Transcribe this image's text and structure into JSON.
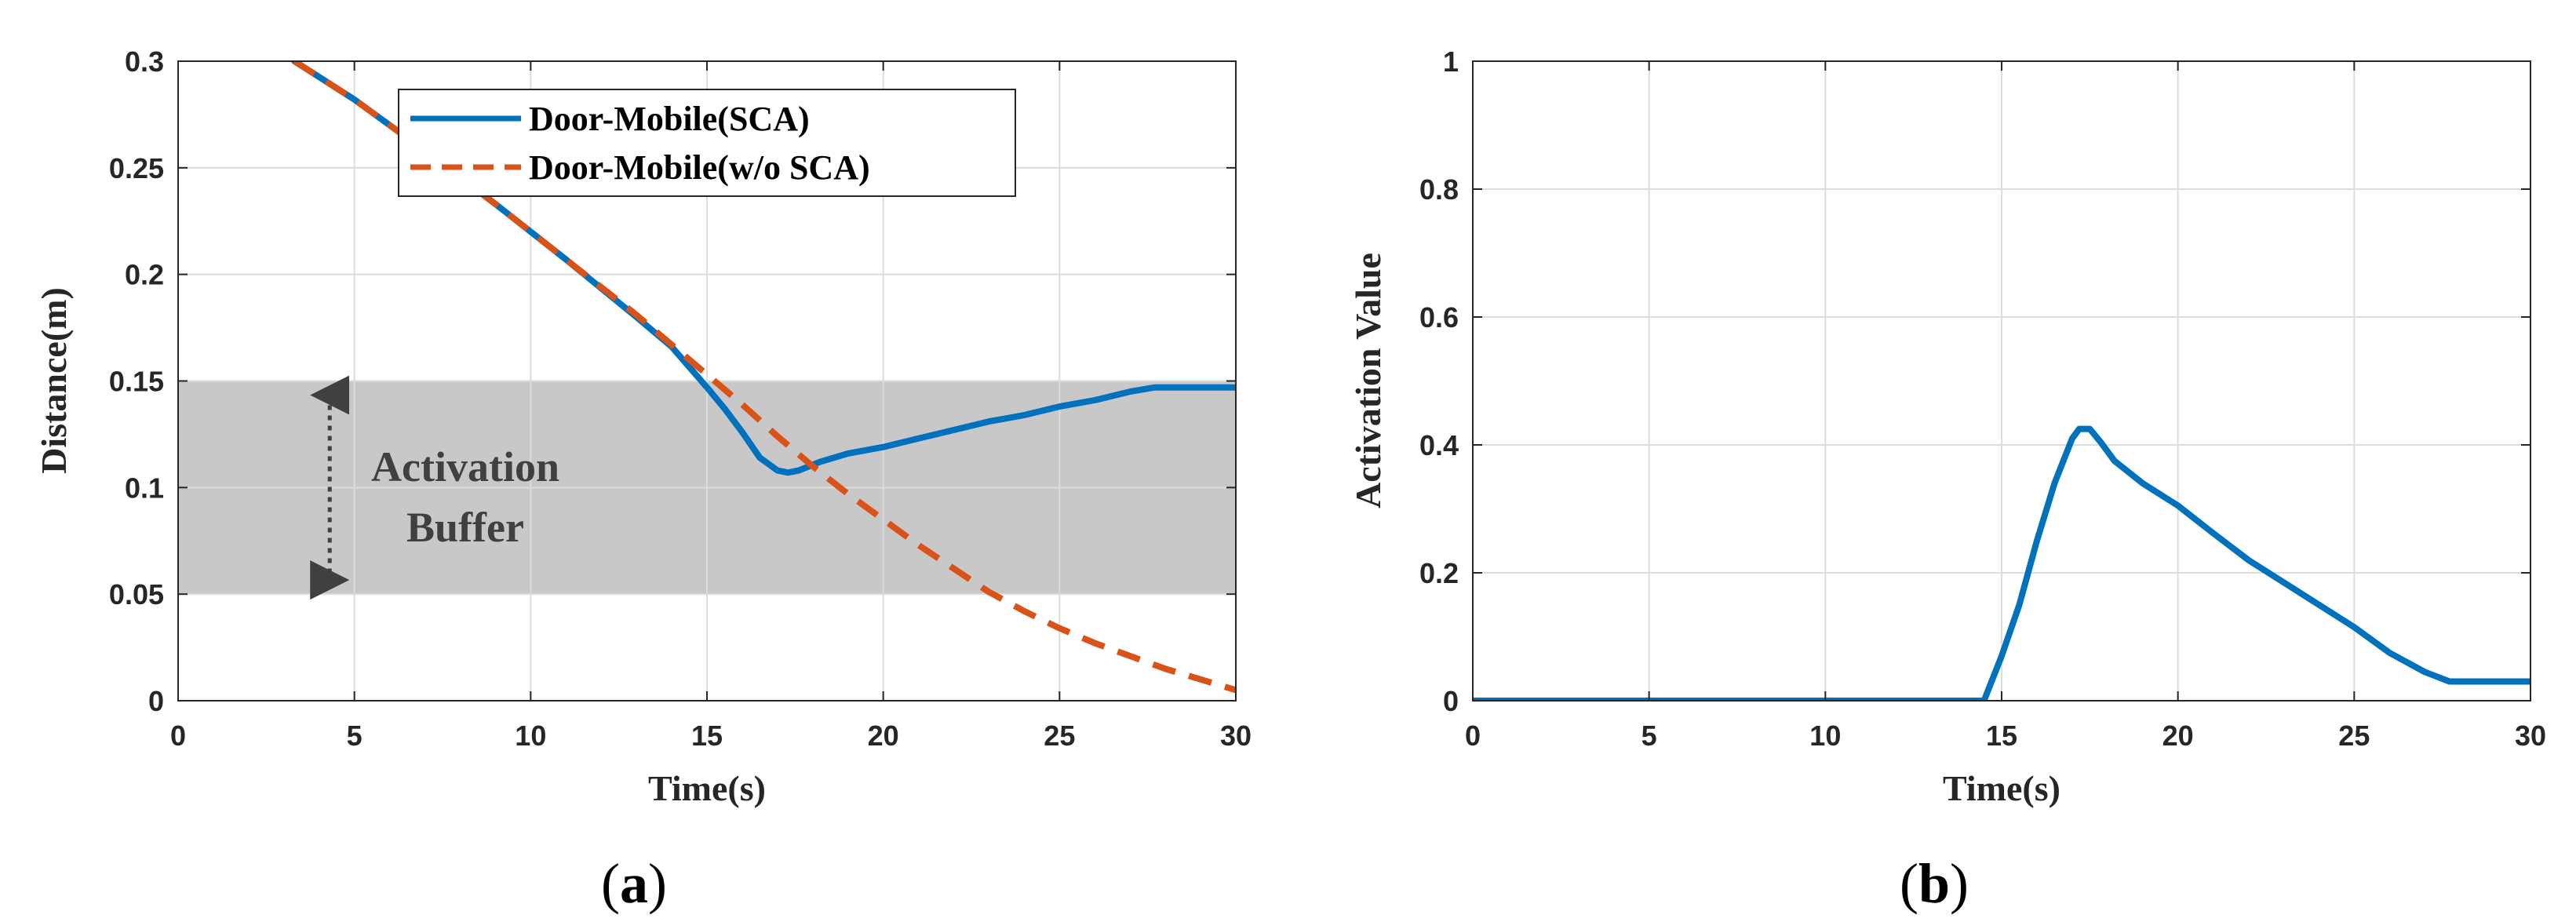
{
  "chart_data": [
    {
      "type": "line",
      "panel_label": "a",
      "xlabel": "Time(s)",
      "ylabel": "Distance(m)",
      "xlim": [
        0,
        30
      ],
      "ylim": [
        0,
        0.3
      ],
      "xticks": [
        0,
        5,
        10,
        15,
        20,
        25,
        30
      ],
      "xtick_labels": [
        "0",
        "5",
        "10",
        "15",
        "20",
        "25",
        "30"
      ],
      "yticks": [
        0,
        0.05,
        0.1,
        0.15,
        0.2,
        0.25,
        0.3
      ],
      "ytick_labels": [
        "0",
        "0.05",
        "0.1",
        "0.15",
        "0.2",
        "0.25",
        "0.3"
      ],
      "grid": true,
      "legend_position": "top-center",
      "shaded_band": {
        "y_from": 0.05,
        "y_to": 0.15,
        "color": "#c8c8c8"
      },
      "annotation": {
        "lines": [
          "Activation",
          "Buffer"
        ],
        "arrow": "double-headed vertical, dotted",
        "x": 4.3,
        "y_from": 0.05,
        "y_to": 0.15
      },
      "series": [
        {
          "name": "Door-Mobile(SCA)",
          "color": "#0072BD",
          "style": "solid",
          "x": [
            3.3,
            5,
            7,
            9,
            11,
            13,
            14,
            15,
            15.5,
            16,
            16.5,
            17,
            17.3,
            17.6,
            17.9,
            18.2,
            19,
            20,
            21,
            22,
            23,
            24,
            25,
            26,
            27,
            27.7,
            28.5,
            30
          ],
          "y": [
            0.3,
            0.282,
            0.258,
            0.233,
            0.207,
            0.18,
            0.166,
            0.147,
            0.137,
            0.126,
            0.114,
            0.108,
            0.107,
            0.108,
            0.11,
            0.112,
            0.116,
            0.119,
            0.123,
            0.127,
            0.131,
            0.134,
            0.138,
            0.141,
            0.145,
            0.147,
            0.147,
            0.147
          ]
        },
        {
          "name": "Door-Mobile(w/o SCA)",
          "color": "#D95319",
          "style": "dashed",
          "x": [
            3.3,
            5,
            7,
            9,
            11,
            13,
            15,
            16,
            17,
            18,
            19,
            20,
            21,
            22,
            23,
            24,
            25,
            26,
            27,
            28,
            29,
            30
          ],
          "y": [
            0.3,
            0.282,
            0.258,
            0.233,
            0.207,
            0.181,
            0.153,
            0.139,
            0.124,
            0.11,
            0.097,
            0.085,
            0.073,
            0.062,
            0.051,
            0.042,
            0.034,
            0.027,
            0.021,
            0.015,
            0.01,
            0.005
          ]
        }
      ]
    },
    {
      "type": "line",
      "panel_label": "b",
      "xlabel": "Time(s)",
      "ylabel": "Activation Value",
      "xlim": [
        0,
        30
      ],
      "ylim": [
        0,
        1
      ],
      "xticks": [
        0,
        5,
        10,
        15,
        20,
        25,
        30
      ],
      "xtick_labels": [
        "0",
        "5",
        "10",
        "15",
        "20",
        "25",
        "30"
      ],
      "yticks": [
        0,
        0.2,
        0.4,
        0.6,
        0.8,
        1
      ],
      "ytick_labels": [
        "0",
        "0.2",
        "0.4",
        "0.6",
        "0.8",
        "1"
      ],
      "grid": true,
      "series": [
        {
          "name": "Activation Value",
          "color": "#0072BD",
          "style": "solid",
          "x": [
            0,
            14.5,
            15,
            15.5,
            16,
            16.5,
            17,
            17.2,
            17.5,
            17.8,
            18.2,
            19,
            20,
            21,
            22,
            23,
            24,
            25,
            26,
            27,
            27.7,
            28.5,
            30
          ],
          "y": [
            0,
            0,
            0.07,
            0.15,
            0.25,
            0.34,
            0.41,
            0.425,
            0.425,
            0.405,
            0.375,
            0.34,
            0.305,
            0.262,
            0.22,
            0.185,
            0.15,
            0.115,
            0.075,
            0.045,
            0.03,
            0.03,
            0.03
          ]
        }
      ]
    }
  ]
}
